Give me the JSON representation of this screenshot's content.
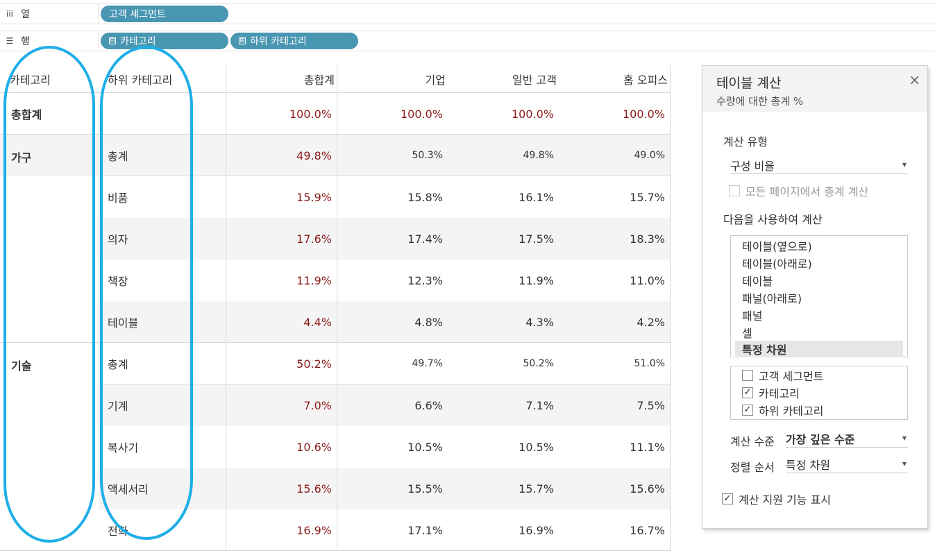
{
  "shelves": {
    "columns": {
      "icon": "iii",
      "label": "열",
      "pills": [
        {
          "label": "고객 세그먼트"
        }
      ]
    },
    "rows": {
      "icon": "☰",
      "label": "행",
      "pills": [
        {
          "label": "카테고리",
          "toggle": "⊟"
        },
        {
          "label": "하위 카테고리",
          "toggle": "⊞"
        }
      ]
    }
  },
  "table": {
    "headers": {
      "category": "카테고리",
      "subcategory": "하위 카테고리",
      "total": "총합계",
      "corporate": "기업",
      "consumer": "일반 고객",
      "home_office": "홈 오피스"
    },
    "grand_total": {
      "label": "총합계",
      "values": [
        "100.0%",
        "100.0%",
        "100.0%",
        "100.0%"
      ]
    },
    "rows": [
      {
        "category": "가구",
        "subcategory": "총계",
        "values": [
          "49.8%",
          "50.3%",
          "49.8%",
          "49.0%"
        ]
      },
      {
        "category": "",
        "subcategory": "비품",
        "values": [
          "15.9%",
          "15.8%",
          "16.1%",
          "15.7%"
        ]
      },
      {
        "category": "",
        "subcategory": "의자",
        "values": [
          "17.6%",
          "17.4%",
          "17.5%",
          "18.3%"
        ]
      },
      {
        "category": "",
        "subcategory": "책장",
        "values": [
          "11.9%",
          "12.3%",
          "11.9%",
          "11.0%"
        ]
      },
      {
        "category": "",
        "subcategory": "테이블",
        "values": [
          "4.4%",
          "4.8%",
          "4.3%",
          "4.2%"
        ]
      },
      {
        "category": "기술",
        "subcategory": "총계",
        "values": [
          "50.2%",
          "49.7%",
          "50.2%",
          "51.0%"
        ]
      },
      {
        "category": "",
        "subcategory": "기계",
        "values": [
          "7.0%",
          "6.6%",
          "7.1%",
          "7.5%"
        ]
      },
      {
        "category": "",
        "subcategory": "복사기",
        "values": [
          "10.6%",
          "10.5%",
          "10.5%",
          "11.1%"
        ]
      },
      {
        "category": "",
        "subcategory": "액세서리",
        "values": [
          "15.6%",
          "15.5%",
          "15.7%",
          "15.6%"
        ]
      },
      {
        "category": "",
        "subcategory": "전화",
        "values": [
          "16.9%",
          "17.1%",
          "16.9%",
          "16.7%"
        ]
      }
    ]
  },
  "dialog": {
    "title": "테이블 계산",
    "subtitle": "수량에 대한 총계 %",
    "close_icon": "×",
    "calc_type_label": "계산 유형",
    "calc_type_value": "구성 비율",
    "all_pages_label": "모든 페이지에서 총계 계산",
    "compute_using_label": "다음을 사용하여 계산",
    "compute_options": [
      "테이블(옆으로)",
      "테이블(아래로)",
      "테이블",
      "패널(아래로)",
      "패널",
      "셀",
      "특정 차원"
    ],
    "selected_option": "특정 차원",
    "dimensions": [
      {
        "label": "고객 세그먼트",
        "checked": false
      },
      {
        "label": "카테고리",
        "checked": true
      },
      {
        "label": "하위 카테고리",
        "checked": true
      }
    ],
    "level_label": "계산 수준",
    "level_value": "가장 깊은 수준",
    "sort_label": "정렬 순서",
    "sort_value": "특정 차원",
    "show_assist_label": "계산 지원 기능 표시",
    "check_mark": "✓",
    "caret": "▼"
  },
  "colors": {
    "pill": "#4996b2",
    "total_red": "#8b1a1a",
    "annotation": "#1eaee8"
  }
}
